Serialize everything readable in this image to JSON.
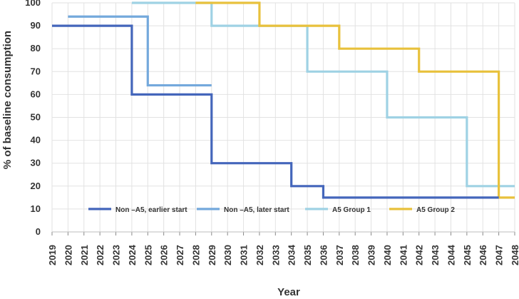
{
  "chart_data": {
    "type": "line",
    "step": true,
    "title": "",
    "xlabel": "Year",
    "ylabel": "% of baseline consumption",
    "ylim": [
      0,
      100
    ],
    "yticks": [
      0,
      10,
      20,
      30,
      40,
      50,
      60,
      70,
      80,
      90,
      100
    ],
    "xlim": [
      2019,
      2048
    ],
    "xticks": [
      2019,
      2020,
      2021,
      2022,
      2023,
      2024,
      2025,
      2026,
      2027,
      2028,
      2029,
      2030,
      2031,
      2032,
      2033,
      2034,
      2035,
      2036,
      2037,
      2038,
      2039,
      2040,
      2041,
      2042,
      2043,
      2044,
      2045,
      2046,
      2047,
      2048
    ],
    "grid": true,
    "legend_position": "bottom-inside",
    "series": [
      {
        "name": "Non –A5, earlier start",
        "color": "#4466bb",
        "points": [
          [
            2019,
            90
          ],
          [
            2024,
            90
          ],
          [
            2024,
            60
          ],
          [
            2029,
            60
          ],
          [
            2029,
            30
          ],
          [
            2034,
            30
          ],
          [
            2034,
            20
          ],
          [
            2036,
            20
          ],
          [
            2036,
            15
          ],
          [
            2047,
            15
          ]
        ]
      },
      {
        "name": "Non –A5, later start",
        "color": "#74a9dc",
        "points": [
          [
            2020,
            94
          ],
          [
            2025,
            94
          ],
          [
            2025,
            64
          ],
          [
            2029,
            64
          ]
        ]
      },
      {
        "name": "A5 Group 1",
        "color": "#9fd2e4",
        "points": [
          [
            2024,
            100
          ],
          [
            2029,
            100
          ],
          [
            2029,
            90
          ],
          [
            2035,
            90
          ],
          [
            2035,
            70
          ],
          [
            2040,
            70
          ],
          [
            2040,
            50
          ],
          [
            2045,
            50
          ],
          [
            2045,
            20
          ],
          [
            2048,
            20
          ]
        ]
      },
      {
        "name": "A5 Group 2",
        "color": "#e8c13c",
        "points": [
          [
            2028,
            100
          ],
          [
            2032,
            100
          ],
          [
            2032,
            90
          ],
          [
            2037,
            90
          ],
          [
            2037,
            80
          ],
          [
            2042,
            80
          ],
          [
            2042,
            70
          ],
          [
            2047,
            70
          ],
          [
            2047,
            15
          ],
          [
            2048,
            15
          ]
        ]
      }
    ]
  }
}
